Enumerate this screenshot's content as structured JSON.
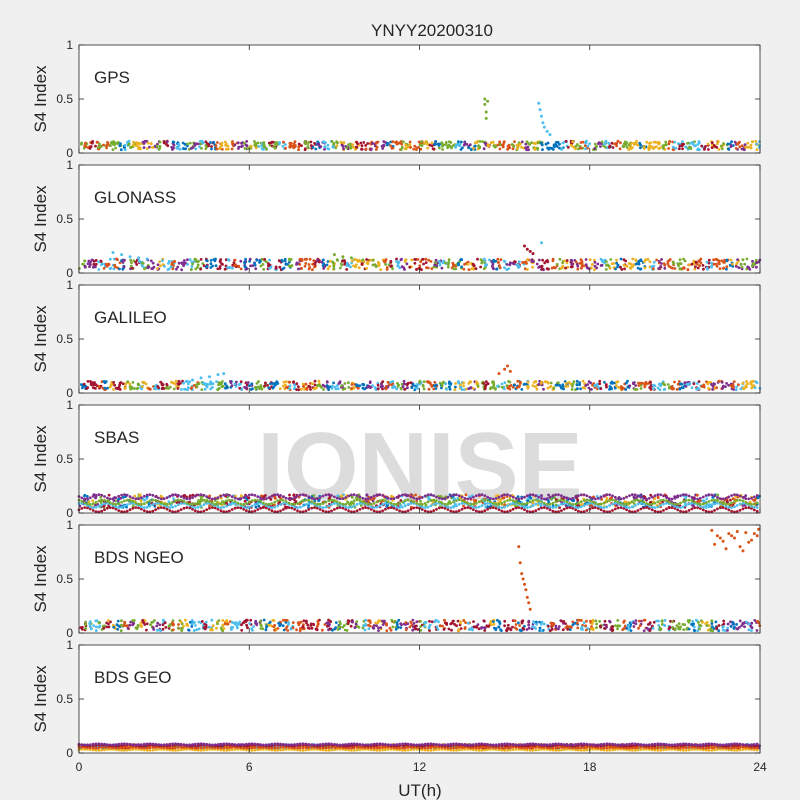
{
  "chart_data": {
    "type": "scatter",
    "title": "YNYY20200310",
    "xlabel": "UT(h)",
    "ylabel": "S4 Index",
    "xlim": [
      0,
      24
    ],
    "ylim": [
      0,
      1
    ],
    "xticks": [
      "0",
      "6",
      "12",
      "18",
      "24"
    ],
    "yticks": [
      "0",
      "0.5",
      "1"
    ],
    "watermark": "IONISE",
    "series_colors": [
      "#0072bd",
      "#d95319",
      "#edb120",
      "#7e2f8e",
      "#77ac30",
      "#4dbeee",
      "#a2142f"
    ],
    "panels": [
      {
        "label": "GPS",
        "baseline": 0.07,
        "spread": 0.04,
        "annotations": [
          {
            "series": 4,
            "x": [
              14.3,
              14.3,
              14.35,
              14.4,
              14.35
            ],
            "y": [
              0.5,
              0.45,
              0.38,
              0.48,
              0.32
            ]
          },
          {
            "series": 5,
            "x": [
              16.2,
              16.25,
              16.3,
              16.35,
              16.4,
              16.5,
              16.6
            ],
            "y": [
              0.46,
              0.4,
              0.34,
              0.28,
              0.24,
              0.2,
              0.17
            ]
          }
        ]
      },
      {
        "label": "GLONASS",
        "baseline": 0.08,
        "spread": 0.05,
        "annotations": [
          {
            "series": 5,
            "x": [
              1.2,
              1.5,
              1.8,
              2.1,
              2.4,
              16.3
            ],
            "y": [
              0.19,
              0.17,
              0.15,
              0.14,
              0.13,
              0.28
            ]
          },
          {
            "series": 6,
            "x": [
              15.7,
              15.8,
              15.9,
              16.0
            ],
            "y": [
              0.25,
              0.22,
              0.2,
              0.18
            ]
          },
          {
            "series": 4,
            "x": [
              9.0,
              9.3,
              9.6,
              10.0
            ],
            "y": [
              0.17,
              0.15,
              0.14,
              0.12
            ]
          }
        ]
      },
      {
        "label": "GALILEO",
        "baseline": 0.07,
        "spread": 0.04,
        "annotations": [
          {
            "series": 5,
            "x": [
              4.0,
              4.3,
              4.6,
              4.9,
              5.1
            ],
            "y": [
              0.12,
              0.14,
              0.15,
              0.17,
              0.18
            ]
          },
          {
            "series": 1,
            "x": [
              14.8,
              15.0,
              15.1,
              15.2
            ],
            "y": [
              0.18,
              0.22,
              0.25,
              0.2
            ]
          }
        ]
      },
      {
        "label": "SBAS",
        "baseline": 0.11,
        "spread": 0.06,
        "annotations": []
      },
      {
        "label": "BDS NGEO",
        "baseline": 0.07,
        "spread": 0.05,
        "annotations": [
          {
            "series": 1,
            "x": [
              15.5,
              15.55,
              15.6,
              15.65,
              15.7,
              15.75,
              15.8,
              15.85,
              15.9
            ],
            "y": [
              0.8,
              0.65,
              0.55,
              0.5,
              0.45,
              0.4,
              0.33,
              0.28,
              0.22
            ]
          },
          {
            "series": 1,
            "x": [
              22.3,
              22.5,
              22.7,
              22.9,
              23.1,
              23.3,
              23.5,
              23.7,
              23.9,
              22.4,
              22.8,
              23.2,
              23.6,
              23.95,
              22.6,
              23.0,
              23.4,
              23.8
            ],
            "y": [
              0.95,
              0.9,
              0.85,
              0.92,
              0.88,
              0.8,
              0.93,
              0.86,
              0.9,
              0.82,
              0.78,
              0.94,
              0.84,
              0.96,
              0.88,
              0.9,
              0.76,
              0.92
            ]
          }
        ]
      },
      {
        "label": "BDS GEO",
        "baseline": 0.06,
        "spread": 0.02,
        "annotations": []
      }
    ]
  }
}
